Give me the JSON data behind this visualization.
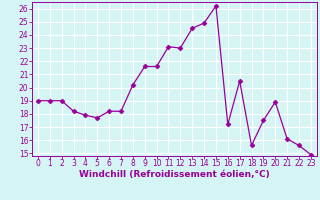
{
  "x": [
    0,
    1,
    2,
    3,
    4,
    5,
    6,
    7,
    8,
    9,
    10,
    11,
    12,
    13,
    14,
    15,
    16,
    17,
    18,
    19,
    20,
    21,
    22,
    23
  ],
  "y": [
    19,
    19,
    19,
    18.2,
    17.9,
    17.7,
    18.2,
    18.2,
    20.2,
    21.6,
    21.6,
    23.1,
    23.0,
    24.5,
    24.9,
    26.2,
    17.2,
    20.5,
    15.6,
    17.5,
    18.9,
    16.1,
    15.6,
    14.9
  ],
  "line_color": "#990099",
  "marker": "D",
  "markersize": 2.5,
  "linewidth": 0.9,
  "xlabel": "Windchill (Refroidissement éolien,°C)",
  "xlim": [
    -0.5,
    23.5
  ],
  "ylim": [
    14.8,
    26.5
  ],
  "yticks": [
    15,
    16,
    17,
    18,
    19,
    20,
    21,
    22,
    23,
    24,
    25,
    26
  ],
  "xticks": [
    0,
    1,
    2,
    3,
    4,
    5,
    6,
    7,
    8,
    9,
    10,
    11,
    12,
    13,
    14,
    15,
    16,
    17,
    18,
    19,
    20,
    21,
    22,
    23
  ],
  "bg_color": "#d5f5f5",
  "grid_color": "#bbdddd",
  "line_border_color": "#990099",
  "tick_color": "#990099",
  "label_color": "#990099",
  "axis_fontsize": 6.5,
  "tick_fontsize": 5.5
}
